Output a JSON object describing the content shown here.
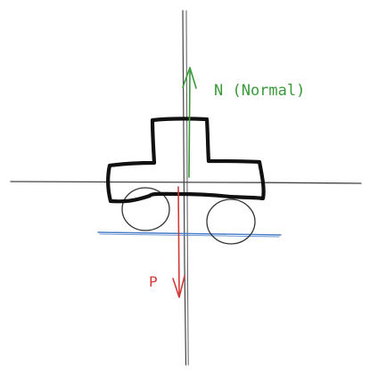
{
  "labels": {
    "normal_force": "N (Normal)",
    "weight": "P"
  },
  "colors": {
    "background": "#ffffff",
    "axis": "#444444",
    "car_outline": "#111111",
    "wheels": "#333333",
    "ground": "#4a7ec8",
    "normal_arrow": "#3a9a3a",
    "weight_arrow": "#d23a3a"
  }
}
